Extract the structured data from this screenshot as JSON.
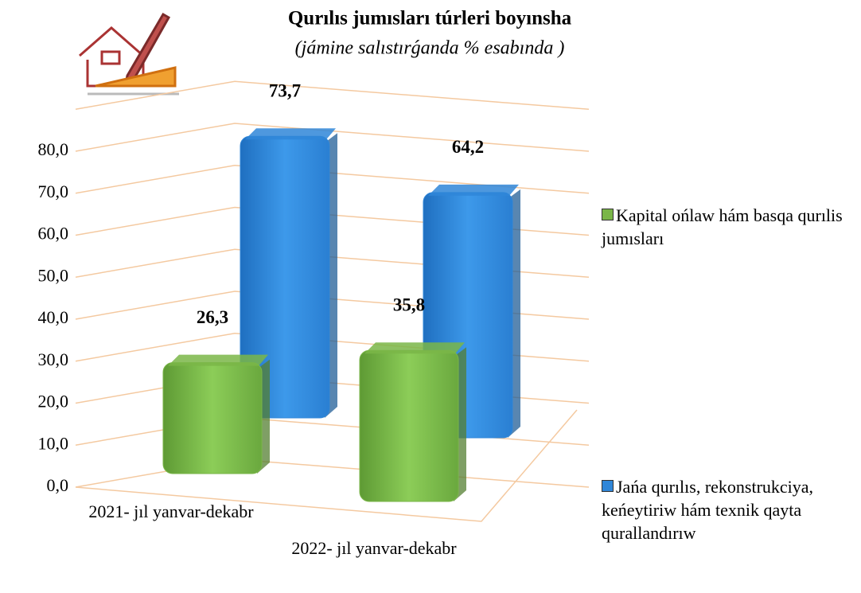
{
  "chart_data": {
    "type": "bar3d",
    "title": "Qurılıs jumısları túrleri boyınsha",
    "subtitle": "(jámine salıstırǵanda % esabında )",
    "categories": [
      "2021- jıl yanvar-dekabr",
      "2022- jıl yanvar-dekabr"
    ],
    "series": [
      {
        "name": "Kapital ońlaw hám basqa qurılis jumısları",
        "color": "#7ab648",
        "values": [
          26.3,
          35.8
        ],
        "value_labels": [
          "26,3",
          "35,8"
        ]
      },
      {
        "name": "Jańa qurılıs, rekonstrukciya, keńeytiriw hám texnik qayta qurallandırıw",
        "color": "#2f86d8",
        "values": [
          73.7,
          64.2
        ],
        "value_labels": [
          "73,7",
          "64,2"
        ]
      }
    ],
    "ylim": [
      0,
      90
    ],
    "yticks": [
      {
        "value": 0,
        "label": "0,0"
      },
      {
        "value": 10,
        "label": "10,0"
      },
      {
        "value": 20,
        "label": "20,0"
      },
      {
        "value": 30,
        "label": "30,0"
      },
      {
        "value": 40,
        "label": "40,0"
      },
      {
        "value": 50,
        "label": "50,0"
      },
      {
        "value": 60,
        "label": "60,0"
      },
      {
        "value": 70,
        "label": "70,0"
      },
      {
        "value": 80,
        "label": "80,0"
      }
    ],
    "grid": true,
    "legend": "right"
  }
}
